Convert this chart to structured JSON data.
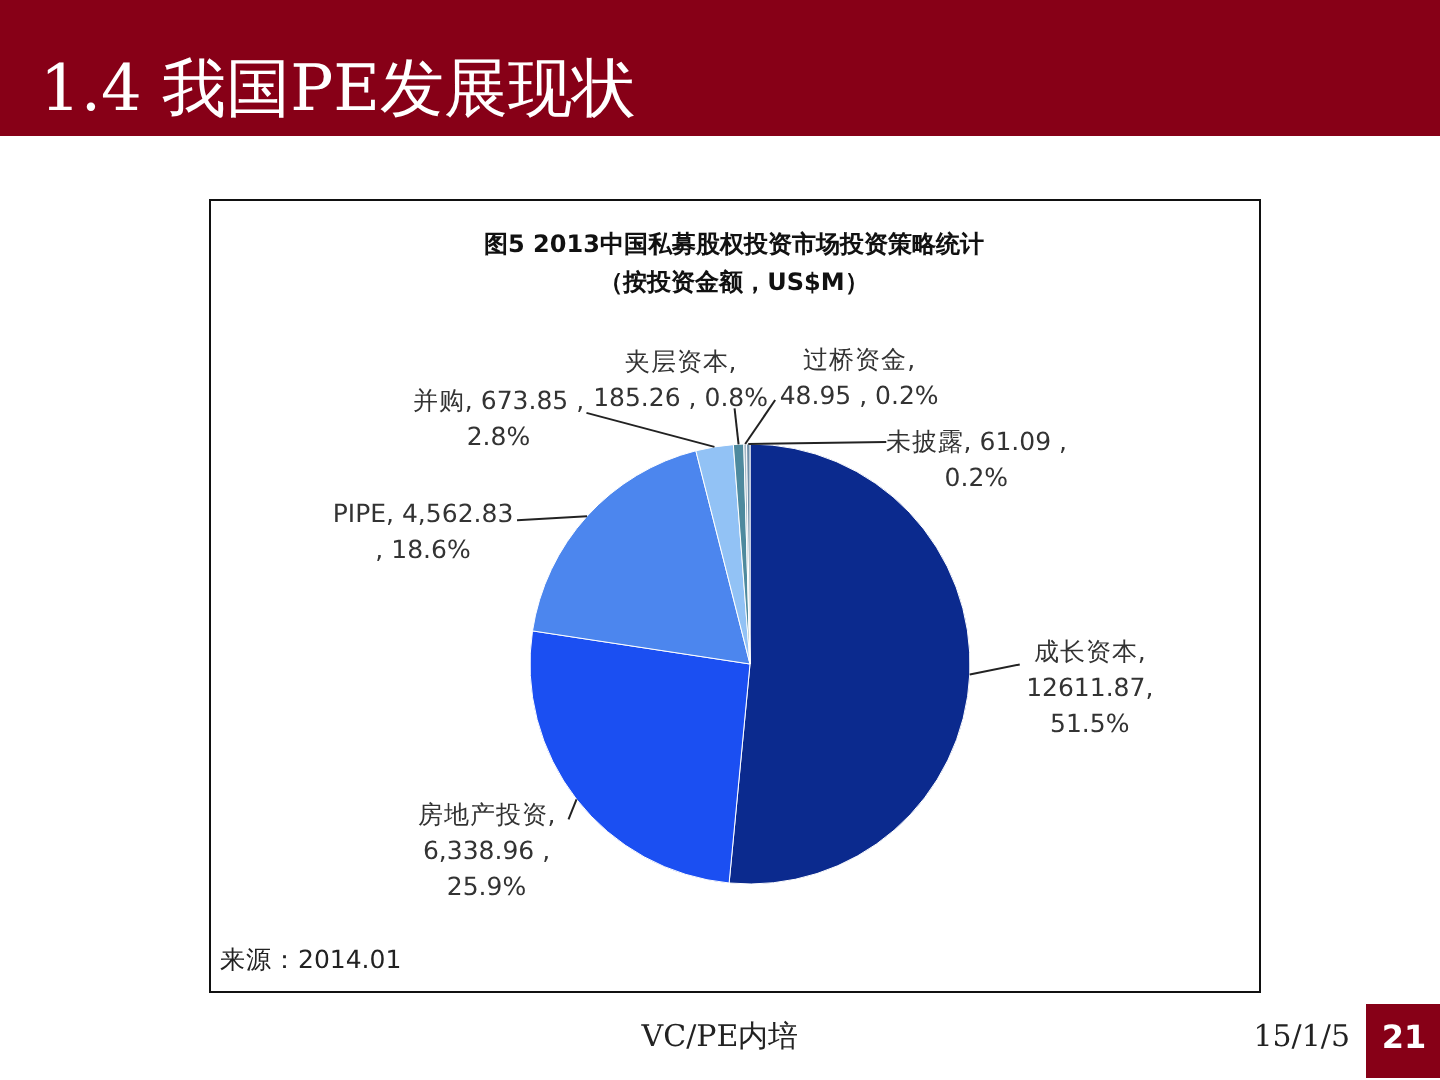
{
  "chart_data": {
    "type": "pie",
    "title": "图5 2013中国私募股权投资市场投资策略统计",
    "subtitle": "（按投资金额，US$M）",
    "categories": [
      "成长资本",
      "房地产投资",
      "PIPE",
      "并购",
      "夹层资本",
      "过桥资金",
      "未披露"
    ],
    "values": [
      12611.87,
      6338.96,
      4562.83,
      673.85,
      185.26,
      48.95,
      61.09
    ],
    "colors": [
      "#0b2a8e",
      "#1b4ff2",
      "#4c86ee",
      "#92c2f5",
      "#4e8a9e",
      "#a3b6c4",
      "#6f90aa"
    ],
    "value_labels": [
      ",\n12611.87,\n51.5%",
      ",\n6,338.96 ,\n25.9%",
      ", 4,562.83\n, 18.6%",
      ", 673.85 ,\n2.8%",
      ",\n185.26 , 0.8%",
      ",\n48.95 , 0.2%",
      ", 61.09 ,\n0.2%"
    ],
    "annotations": [
      "1.4 我国PE发展现状",
      "来源：2014.01",
      "VC/PE内培",
      "15/1/5",
      "21"
    ]
  }
}
